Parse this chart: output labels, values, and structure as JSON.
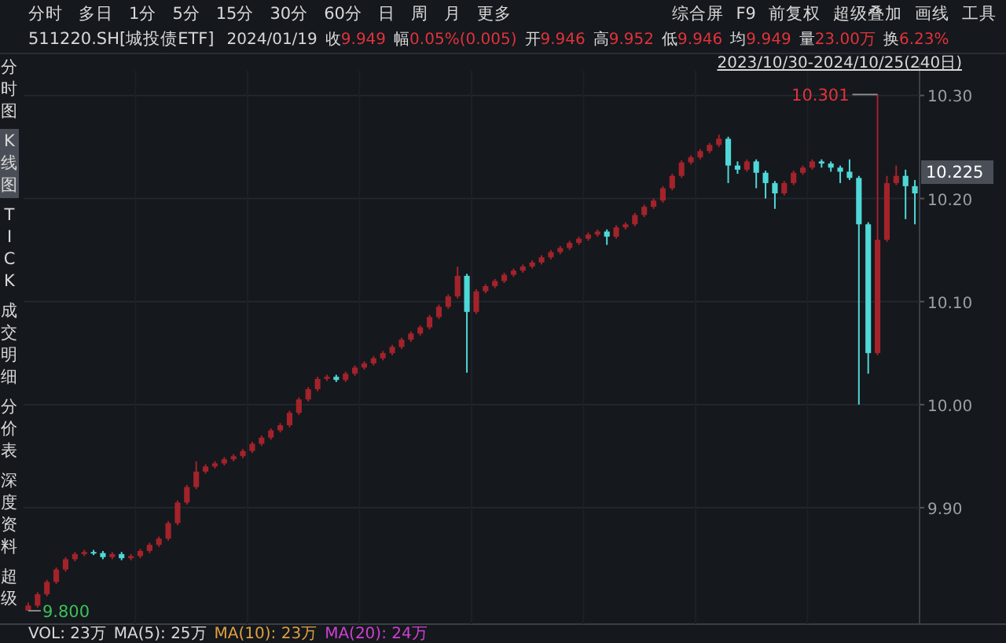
{
  "chart_data": {
    "type": "candlestick",
    "title": "511220.SH[城投债ETF]",
    "subtitle": "2024/01/19 收9.949 幅0.05%(0.005) 开9.946 高9.952 低9.946 均9.949 量23.00万 换6.23%",
    "annotations": [
      "分时 多日 1分 5分 15分 30分 60分 日 周 月 更多",
      "综合屏 F9 前复权 超级叠加 画线 工具",
      "分时图",
      "K线图",
      "TICK",
      "成交明细",
      "分价表",
      "深度资料",
      "超级",
      "2023/10/30-2024/10/25(240日)",
      "VOL: 23万",
      "MA(5): 25万",
      "MA(10): 23万",
      "MA(20): 24万",
      "10.301",
      "9.800",
      "10.225"
    ],
    "categories": [
      null,
      null,
      null,
      null,
      null,
      null,
      null,
      null,
      null,
      null,
      null,
      null,
      null,
      null,
      null,
      null,
      null,
      null,
      null,
      null,
      null,
      null,
      null,
      null,
      null,
      null,
      null,
      null,
      null,
      null,
      null,
      null,
      null,
      null,
      null,
      null,
      null,
      null,
      null,
      null,
      null,
      null,
      null,
      null,
      null,
      null,
      null,
      null,
      null,
      null,
      null,
      null,
      null,
      null,
      null,
      null,
      null,
      null,
      null,
      null,
      null,
      null,
      null,
      null,
      null,
      null,
      null,
      null,
      null,
      null,
      null,
      null,
      null,
      null,
      null,
      null,
      null,
      null,
      null,
      null,
      null,
      null,
      null,
      null,
      null,
      null,
      null,
      null,
      null,
      null,
      null,
      null,
      null,
      null,
      null,
      null
    ],
    "ohlc": [
      [
        9.8,
        9.808,
        9.8,
        9.805
      ],
      [
        9.805,
        9.818,
        9.803,
        9.816
      ],
      [
        9.816,
        9.83,
        9.814,
        9.828
      ],
      [
        9.828,
        9.842,
        9.826,
        9.84
      ],
      [
        9.84,
        9.852,
        9.838,
        9.85
      ],
      [
        9.85,
        9.857,
        9.848,
        9.855
      ],
      [
        9.855,
        9.859,
        9.853,
        9.857
      ],
      [
        9.857,
        9.859,
        9.854,
        9.856
      ],
      [
        9.856,
        9.858,
        9.85,
        9.852
      ],
      [
        9.852,
        9.857,
        9.85,
        9.855
      ],
      [
        9.855,
        9.857,
        9.849,
        9.851
      ],
      [
        9.851,
        9.855,
        9.849,
        9.853
      ],
      [
        9.853,
        9.86,
        9.851,
        9.858
      ],
      [
        9.858,
        9.866,
        9.856,
        9.864
      ],
      [
        9.864,
        9.872,
        9.862,
        9.87
      ],
      [
        9.87,
        9.887,
        9.868,
        9.885
      ],
      [
        9.885,
        9.907,
        9.883,
        9.905
      ],
      [
        9.905,
        9.922,
        9.903,
        9.92
      ],
      [
        9.92,
        9.945,
        9.918,
        9.935
      ],
      [
        9.935,
        9.942,
        9.933,
        9.94
      ],
      [
        9.94,
        9.945,
        9.938,
        9.943
      ],
      [
        9.943,
        9.949,
        9.941,
        9.947
      ],
      [
        9.947,
        9.952,
        9.945,
        9.95
      ],
      [
        9.95,
        9.957,
        9.948,
        9.955
      ],
      [
        9.955,
        9.964,
        9.953,
        9.962
      ],
      [
        9.962,
        9.97,
        9.96,
        9.968
      ],
      [
        9.968,
        9.977,
        9.966,
        9.975
      ],
      [
        9.975,
        9.982,
        9.973,
        9.98
      ],
      [
        9.98,
        9.994,
        9.978,
        9.992
      ],
      [
        9.992,
        10.007,
        9.99,
        10.005
      ],
      [
        10.005,
        10.017,
        10.003,
        10.015
      ],
      [
        10.015,
        10.027,
        10.013,
        10.025
      ],
      [
        10.025,
        10.029,
        10.023,
        10.027
      ],
      [
        10.027,
        10.029,
        10.022,
        10.024
      ],
      [
        10.024,
        10.032,
        10.022,
        10.03
      ],
      [
        10.03,
        10.038,
        10.028,
        10.036
      ],
      [
        10.036,
        10.042,
        10.034,
        10.04
      ],
      [
        10.04,
        10.047,
        10.038,
        10.045
      ],
      [
        10.045,
        10.052,
        10.043,
        10.05
      ],
      [
        10.05,
        10.058,
        10.048,
        10.056
      ],
      [
        10.056,
        10.065,
        10.054,
        10.063
      ],
      [
        10.063,
        10.071,
        10.061,
        10.069
      ],
      [
        10.069,
        10.077,
        10.067,
        10.075
      ],
      [
        10.075,
        10.087,
        10.073,
        10.085
      ],
      [
        10.085,
        10.097,
        10.083,
        10.095
      ],
      [
        10.095,
        10.107,
        10.093,
        10.105
      ],
      [
        10.105,
        10.134,
        10.103,
        10.125
      ],
      [
        10.125,
        10.127,
        10.031,
        10.09
      ],
      [
        10.09,
        10.112,
        10.088,
        10.11
      ],
      [
        10.11,
        10.117,
        10.108,
        10.115
      ],
      [
        10.115,
        10.122,
        10.113,
        10.12
      ],
      [
        10.12,
        10.128,
        10.118,
        10.126
      ],
      [
        10.126,
        10.132,
        10.124,
        10.13
      ],
      [
        10.13,
        10.136,
        10.128,
        10.134
      ],
      [
        10.134,
        10.14,
        10.132,
        10.138
      ],
      [
        10.138,
        10.145,
        10.136,
        10.143
      ],
      [
        10.143,
        10.15,
        10.141,
        10.148
      ],
      [
        10.148,
        10.154,
        10.146,
        10.152
      ],
      [
        10.152,
        10.159,
        10.15,
        10.157
      ],
      [
        10.157,
        10.163,
        10.155,
        10.161
      ],
      [
        10.161,
        10.167,
        10.159,
        10.165
      ],
      [
        10.165,
        10.17,
        10.163,
        10.168
      ],
      [
        10.168,
        10.17,
        10.155,
        10.163
      ],
      [
        10.163,
        10.174,
        10.161,
        10.172
      ],
      [
        10.172,
        10.177,
        10.17,
        10.175
      ],
      [
        10.175,
        10.186,
        10.173,
        10.184
      ],
      [
        10.184,
        10.194,
        10.182,
        10.192
      ],
      [
        10.192,
        10.2,
        10.19,
        10.198
      ],
      [
        10.198,
        10.212,
        10.196,
        10.21
      ],
      [
        10.21,
        10.224,
        10.208,
        10.222
      ],
      [
        10.222,
        10.237,
        10.22,
        10.235
      ],
      [
        10.235,
        10.242,
        10.233,
        10.24
      ],
      [
        10.24,
        10.248,
        10.238,
        10.246
      ],
      [
        10.246,
        10.254,
        10.244,
        10.252
      ],
      [
        10.252,
        10.262,
        10.25,
        10.258
      ],
      [
        10.258,
        10.26,
        10.215,
        10.232
      ],
      [
        10.232,
        10.236,
        10.224,
        10.228
      ],
      [
        10.228,
        10.238,
        10.226,
        10.236
      ],
      [
        10.236,
        10.238,
        10.21,
        10.225
      ],
      [
        10.225,
        10.227,
        10.2,
        10.215
      ],
      [
        10.215,
        10.217,
        10.19,
        10.205
      ],
      [
        10.205,
        10.217,
        10.203,
        10.215
      ],
      [
        10.215,
        10.227,
        10.213,
        10.225
      ],
      [
        10.225,
        10.232,
        10.223,
        10.23
      ],
      [
        10.23,
        10.238,
        10.228,
        10.236
      ],
      [
        10.236,
        10.238,
        10.23,
        10.234
      ],
      [
        10.234,
        10.236,
        10.226,
        10.23
      ],
      [
        10.23,
        10.232,
        10.215,
        10.226
      ],
      [
        10.226,
        10.238,
        10.218,
        10.22
      ],
      [
        10.22,
        10.222,
        10.0,
        10.175
      ],
      [
        10.175,
        10.177,
        10.03,
        10.05
      ],
      [
        10.05,
        10.301,
        10.048,
        10.16
      ],
      [
        10.16,
        10.222,
        10.158,
        10.215
      ],
      [
        10.215,
        10.232,
        10.213,
        10.222
      ],
      [
        10.222,
        10.228,
        10.18,
        10.212
      ],
      [
        10.212,
        10.218,
        10.175,
        10.205
      ]
    ],
    "ylim": [
      9.787,
      10.324
    ],
    "yticks": [
      {
        "value": 9.9,
        "label": "9.90"
      },
      {
        "value": 10.0,
        "label": "10.00"
      },
      {
        "value": 10.1,
        "label": "10.10"
      },
      {
        "value": 10.2,
        "label": "10.20"
      },
      {
        "value": 10.3,
        "label": "10.30"
      }
    ],
    "grid": true,
    "tick_labels": "y"
  }
}
